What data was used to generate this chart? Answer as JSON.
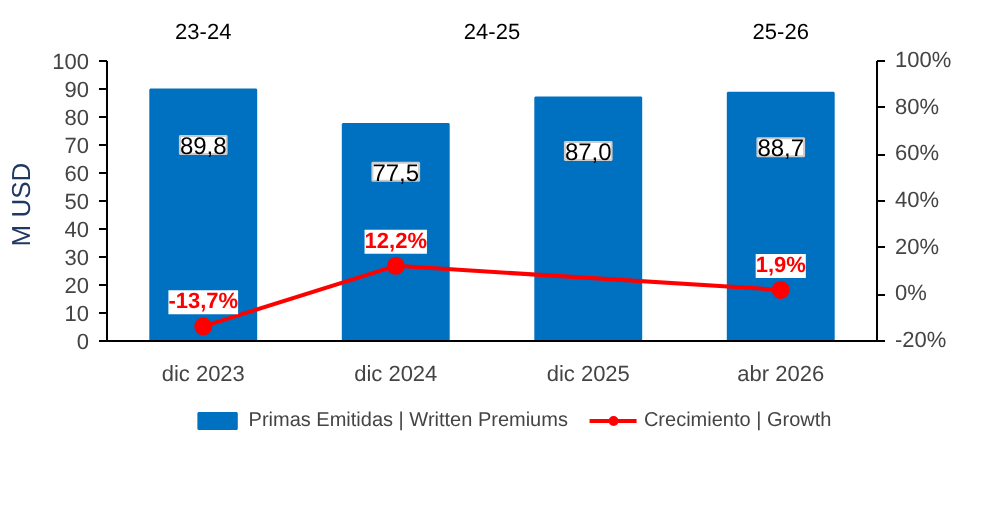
{
  "chart_data": {
    "type": "bar",
    "categories": [
      "dic 2023",
      "dic 2024",
      "dic 2025",
      "abr 2026"
    ],
    "series": [
      {
        "name": "Primas Emitidas | Written Premiums",
        "color": "#0070c0",
        "values": [
          89.8,
          77.5,
          87.0,
          88.7
        ],
        "value_labels": [
          "89,8",
          "77,5",
          "87,0",
          "88,7"
        ]
      },
      {
        "name": "Crecimiento | Growth",
        "type": "line",
        "axis": "y2",
        "color": "#ff0000",
        "marker": "circle",
        "values": [
          -13.7,
          12.2,
          null,
          1.9
        ],
        "value_labels": [
          "-13,7%",
          "12,2%",
          null,
          "1,9%"
        ]
      }
    ],
    "ylabel": "M  USD",
    "ylim": [
      0,
      100
    ],
    "yticks": [
      0,
      10,
      20,
      30,
      40,
      50,
      60,
      70,
      80,
      90,
      100
    ],
    "y2lim": [
      -20,
      100
    ],
    "y2ticks": [
      {
        "value": -20,
        "label": "-20%"
      },
      {
        "value": 0,
        "label": "0%"
      },
      {
        "value": 20,
        "label": "20%"
      },
      {
        "value": 40,
        "label": "40%"
      },
      {
        "value": 60,
        "label": "60%"
      },
      {
        "value": 80,
        "label": "80%"
      },
      {
        "value": 100,
        "label": "100%"
      }
    ],
    "annotations": [
      "23-24",
      "24-25",
      "25-26"
    ],
    "legend": "bottom",
    "grid": false
  }
}
